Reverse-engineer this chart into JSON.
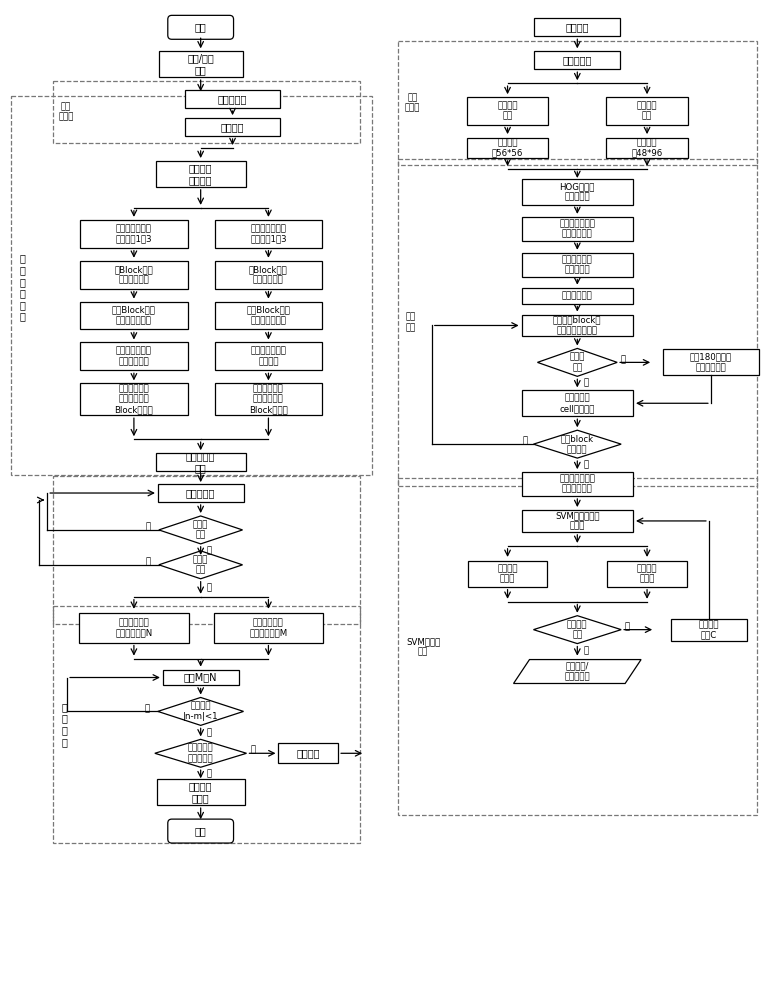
{
  "nodes": {
    "start": "开始",
    "video_input": "视频/图像\n接入",
    "img_gray": "图像灰度化",
    "img_scale": "图像缩放",
    "feature_param": "特征提取\n参数设置",
    "ped_region": "行人检测区域划\n分并编号1到3",
    "veh_region": "车辆检测区域划\n分并编号1到3",
    "ped_block": "用Block遍历\n行人检测区域",
    "veh_block": "用Block遍历\n车辆检测区域",
    "ped_feat": "提取Block特征\n并建立特征索引",
    "veh_feat": "提取Block特征\n并建立特征索引",
    "ped_window": "用检测窗口遍历\n行人检测区域",
    "veh_window": "用检测窗口遍历\n检测区域",
    "ped_find": "查找检测窗口\n内覆盖的所有\nBlock的特征",
    "veh_find": "查找检测窗口\n内覆盖的所有\nBlock的特征",
    "clf_param": "分类器参数\n设置",
    "clf_pred": "分类器预测",
    "det_ped": "检测到\n行人",
    "det_veh": "检测到\n车辆",
    "calc_ped_set": "计算所有行人\n区域编号集合N",
    "calc_veh_set": "计算所有车辆\n区域编号集合M",
    "traverse_mn": "遍历M、N",
    "exist_code": "存在编号\n|n-m|<1",
    "veh_enter": "车辆中心进\n入人行区域",
    "remote_warn": "远程告警",
    "remote_capture": "远程告警\n并抓拍",
    "end": "结束",
    "sample_collect": "样本采集",
    "sample_gray": "样本灰度化",
    "veh_crop": "车辆目标\n裁剪",
    "ped_crop": "行人目标\n裁剪",
    "veh_resize": "尺寸缩放\n为56*56",
    "ped_resize": "尺寸缩放\n为48*96",
    "hog_param": "HOG特征提\n取参数设置",
    "calc_gradient": "分别计算水平梯\n度和垂直梯度",
    "calc_magnitude": "分别计算梯度\n幅度和方向",
    "linear_interp": "一维线形插值",
    "block_interp": "遍历所有block并\n进行三维线性插值",
    "vote_bidir": "投票分\n双向",
    "merge_180": "相隔180度两个\n方向投票合并",
    "extract_hist": "分别提取各\ncell内直方图",
    "block_done": "所有block\n计算完毕",
    "collect_norm": "按序收集所有直\n方图并归一化",
    "svm_init": "SVM分类器参数\n初始化",
    "train_veh": "训练车辆\n分类器",
    "train_ped": "训练行人\n分类器",
    "accuracy_ok": "满足精度\n要求",
    "modify_c": "修改惩罚\n因子C",
    "get_clf": "获得行人/\n车辆分类器"
  },
  "labels": {
    "img_preproc": "图像\n预处理",
    "target_fast": "目\n标\n快\n速\n检\n测",
    "violation": "违\n法\n判\n断",
    "sample_preproc": "样本\n预处理",
    "feat_extract": "特征\n提取",
    "svm_train": "SVM分类器\n训练"
  }
}
